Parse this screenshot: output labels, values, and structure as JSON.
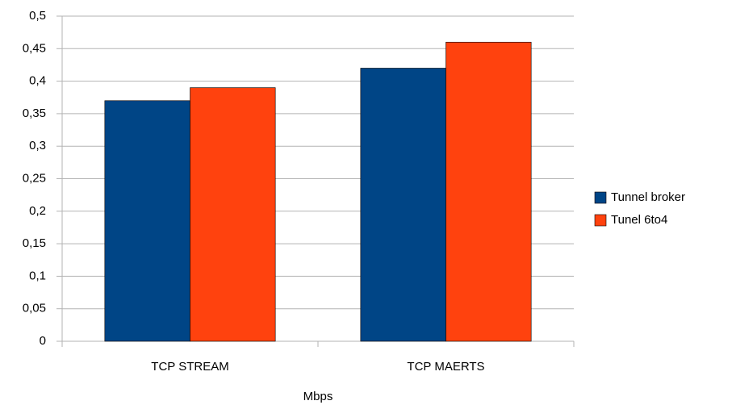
{
  "chart_data": {
    "type": "bar",
    "xlabel": "Mbps",
    "categories": [
      "TCP STREAM",
      "TCP MAERTS"
    ],
    "series": [
      {
        "name": "Tunnel broker",
        "color": "#004586",
        "values": [
          0.37,
          0.42
        ]
      },
      {
        "name": "Tunel 6to4",
        "color": "#ff420e",
        "values": [
          0.39,
          0.46
        ]
      }
    ],
    "ylim": [
      0,
      0.5
    ],
    "yticks": [
      0,
      {
        "value": 0.05,
        "label": "0,05"
      },
      {
        "value": 0.1,
        "label": "0,1"
      },
      {
        "value": 0.15,
        "label": "0,15"
      },
      {
        "value": 0.2,
        "label": "0,2"
      },
      {
        "value": 0.25,
        "label": "0,25"
      },
      {
        "value": 0.3,
        "label": "0,3"
      },
      {
        "value": 0.35,
        "label": "0,35"
      },
      {
        "value": 0.4,
        "label": "0,4"
      },
      {
        "value": 0.45,
        "label": "0,45"
      },
      {
        "value": 0.5,
        "label": "0,5"
      }
    ],
    "grid": true,
    "legend": "right"
  }
}
